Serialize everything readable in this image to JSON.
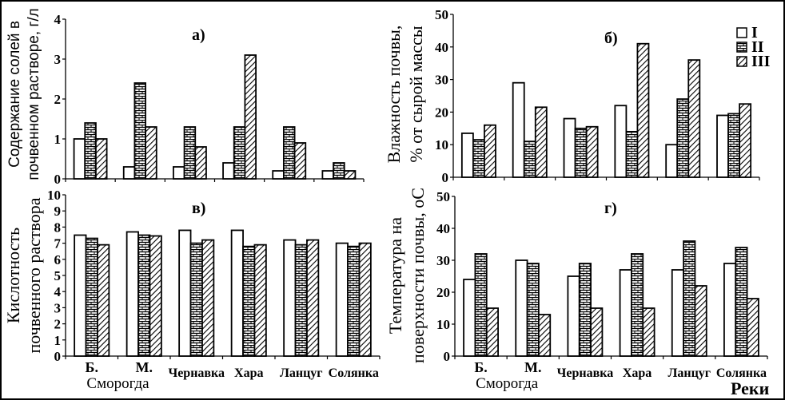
{
  "figure": {
    "x_axis_title": "Реки",
    "legend": [
      {
        "label": "I",
        "pattern": "white"
      },
      {
        "label": "II",
        "pattern": "brick"
      },
      {
        "label": "III",
        "pattern": "hatch"
      }
    ]
  },
  "chart_data": [
    {
      "id": "a",
      "type": "bar",
      "panel_label": "а)",
      "title": "",
      "ylabel_lines": [
        "Содержание солей в",
        "почвенном растворе, г/л"
      ],
      "xlabel": "",
      "ylim": [
        0,
        4
      ],
      "yticks": [
        "0",
        "1",
        "2",
        "3",
        "4"
      ],
      "categories": [
        "Б. Сморогда",
        "М. Сморогда",
        "Чернавка",
        "Хара",
        "Ланцуг",
        "Солянка"
      ],
      "show_category_labels": false,
      "series": [
        {
          "name": "I",
          "values": [
            1.0,
            0.3,
            0.3,
            0.4,
            0.2,
            0.2
          ]
        },
        {
          "name": "II",
          "values": [
            1.4,
            2.4,
            1.3,
            1.3,
            1.3,
            0.4
          ]
        },
        {
          "name": "III",
          "values": [
            1.0,
            1.3,
            0.8,
            3.1,
            0.9,
            0.2
          ]
        }
      ],
      "grid": false
    },
    {
      "id": "b",
      "type": "bar",
      "panel_label": "б)",
      "title": "",
      "ylabel_lines": [
        "Влажность почвы,",
        "% от сырой массы"
      ],
      "xlabel": "",
      "ylim": [
        0,
        50
      ],
      "yticks": [
        "0",
        "10",
        "20",
        "30",
        "40",
        "50"
      ],
      "categories": [
        "Б. Сморогда",
        "М. Сморогда",
        "Чернавка",
        "Хара",
        "Ланцуг",
        "Солянка"
      ],
      "show_category_labels": false,
      "series": [
        {
          "name": "I",
          "values": [
            13.5,
            29,
            18,
            22,
            10,
            19
          ]
        },
        {
          "name": "II",
          "values": [
            11.5,
            11,
            15,
            14,
            24,
            19.5
          ]
        },
        {
          "name": "III",
          "values": [
            16,
            21.5,
            15.5,
            41,
            36,
            22.5
          ]
        }
      ],
      "legend_position": "top-right",
      "grid": false
    },
    {
      "id": "c",
      "type": "bar",
      "panel_label": "в)",
      "title": "",
      "ylabel_lines": [
        "Кислотность",
        "почвенного раствора"
      ],
      "xlabel": "",
      "ylim": [
        0,
        10
      ],
      "yticks": [
        "0",
        "1",
        "2",
        "3",
        "4",
        "5",
        "6",
        "7",
        "8",
        "9",
        "10"
      ],
      "categories": [
        "Б. Сморогда",
        "М. Сморогда",
        "Чернавка",
        "Хара",
        "Ланцуг",
        "Солянка"
      ],
      "category_labels": [
        "Б.",
        "М.",
        "Чернавка",
        "Хара",
        "Ланцуг",
        "Солянка"
      ],
      "group_label": "Сморогда",
      "show_category_labels": true,
      "series": [
        {
          "name": "I",
          "values": [
            7.5,
            7.7,
            7.8,
            7.8,
            7.2,
            7.0
          ]
        },
        {
          "name": "II",
          "values": [
            7.3,
            7.5,
            7.0,
            6.8,
            6.9,
            6.8
          ]
        },
        {
          "name": "III",
          "values": [
            6.9,
            7.45,
            7.2,
            6.9,
            7.2,
            7.0
          ]
        }
      ],
      "grid": false
    },
    {
      "id": "d",
      "type": "bar",
      "panel_label": "г)",
      "title": "",
      "ylabel_lines": [
        "Температура на",
        "поверхности почвы, оС"
      ],
      "xlabel": "Реки",
      "ylim": [
        0,
        50
      ],
      "yticks": [
        "0",
        "10",
        "20",
        "30",
        "40",
        "50"
      ],
      "categories": [
        "Б. Сморогда",
        "М. Сморогда",
        "Чернавка",
        "Хара",
        "Ланцуг",
        "Солянка"
      ],
      "category_labels": [
        "Б.",
        "М.",
        "Чернавка",
        "Хара",
        "Ланцуг",
        "Солянка"
      ],
      "group_label": "Сморогда",
      "show_category_labels": true,
      "series": [
        {
          "name": "I",
          "values": [
            24,
            30,
            25,
            27,
            27,
            29
          ]
        },
        {
          "name": "II",
          "values": [
            32,
            29,
            29,
            32,
            36,
            34
          ]
        },
        {
          "name": "III",
          "values": [
            15,
            13,
            15,
            15,
            22,
            18
          ]
        }
      ],
      "grid": false
    }
  ]
}
